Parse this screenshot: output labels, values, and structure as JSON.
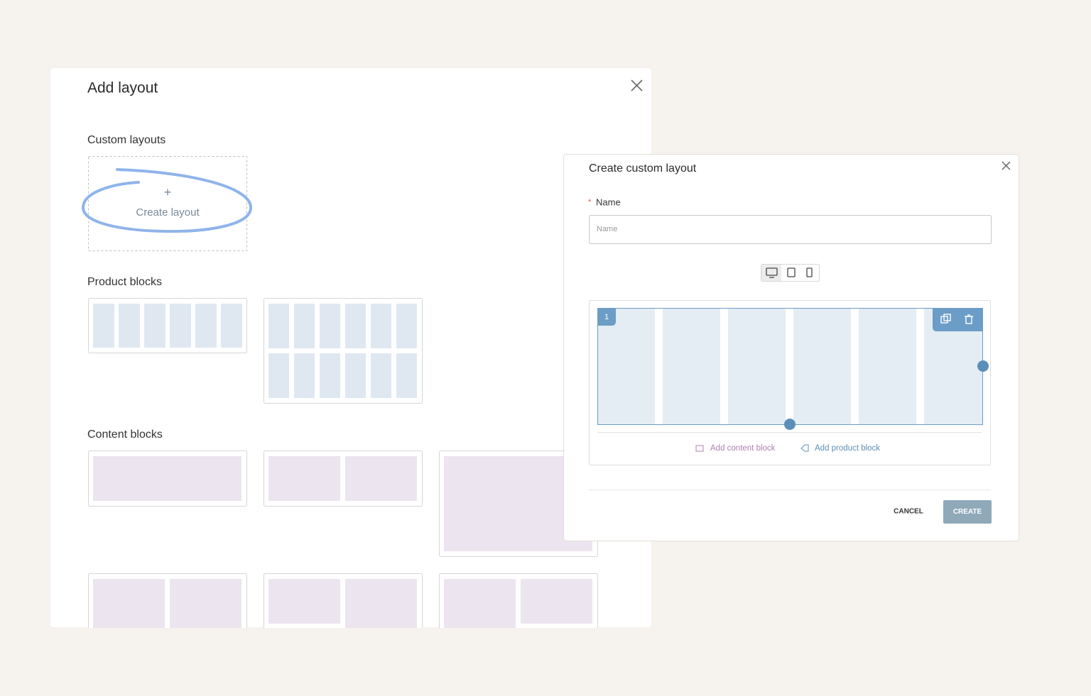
{
  "add_layout_dialog": {
    "title": "Add layout",
    "custom_layouts_heading": "Custom layouts",
    "create_icon": "+",
    "create_label": "Create layout",
    "product_blocks_heading": "Product blocks",
    "content_blocks_heading": "Content blocks"
  },
  "create_dialog": {
    "title": "Create custom layout",
    "required_mark": "*",
    "name_label": "Name",
    "name_placeholder": "Name",
    "group_number": "1",
    "add_content_block": "Add content block",
    "add_product_block": "Add product block",
    "cancel": "CANCEL",
    "create": "CREATE"
  }
}
